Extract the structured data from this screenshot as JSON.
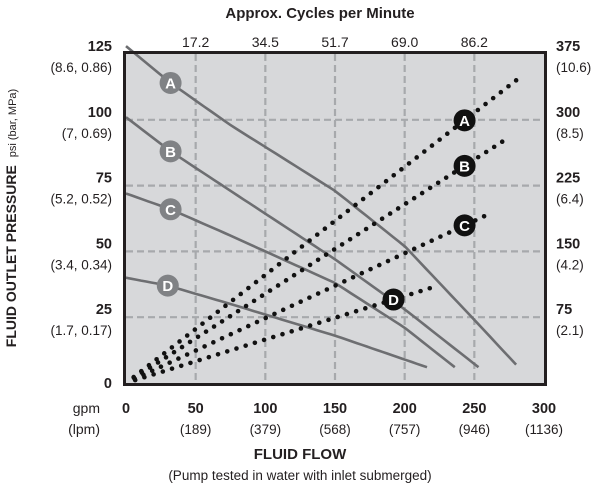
{
  "chart_data": {
    "type": "line",
    "title": "",
    "top_axis": {
      "label": "Approx. Cycles per Minute",
      "ticks": [
        "17.2",
        "34.5",
        "51.7",
        "69.0",
        "86.2"
      ],
      "tick_gpm": [
        50,
        100,
        150,
        200,
        250
      ]
    },
    "xaxis": {
      "label": "FLUID FLOW",
      "sublabel": "(Pump tested in water with inlet submerged)",
      "unit_primary": "gpm",
      "unit_secondary": "(lpm)",
      "range": [
        0,
        300
      ],
      "ticks": [
        {
          "value": 0,
          "label": "0",
          "sub": ""
        },
        {
          "value": 50,
          "label": "50",
          "sub": "(189)"
        },
        {
          "value": 100,
          "label": "100",
          "sub": "(379)"
        },
        {
          "value": 150,
          "label": "150",
          "sub": "(568)"
        },
        {
          "value": 200,
          "label": "200",
          "sub": "(757)"
        },
        {
          "value": 250,
          "label": "250",
          "sub": "(946)"
        },
        {
          "value": 300,
          "label": "300",
          "sub": "(1136)"
        }
      ]
    },
    "yaxis_left": {
      "label": "FLUID OUTLET PRESSURE",
      "label_units": "psi (bar, MPa)",
      "range": [
        0,
        125
      ],
      "ticks": [
        {
          "value": 125,
          "label": "125",
          "sub": "(8.6, 0.86)"
        },
        {
          "value": 100,
          "label": "100",
          "sub": "(7, 0.69)"
        },
        {
          "value": 75,
          "label": "75",
          "sub": "(5.2, 0.52)"
        },
        {
          "value": 50,
          "label": "50",
          "sub": "(3.4, 0.34)"
        },
        {
          "value": 25,
          "label": "25",
          "sub": "(1.7, 0.17)"
        },
        {
          "value": 0,
          "label": "0",
          "sub": ""
        }
      ]
    },
    "yaxis_right": {
      "range": [
        0,
        375
      ],
      "ticks": [
        {
          "value": 375,
          "label": "375",
          "sub": "(10.6)"
        },
        {
          "value": 300,
          "label": "300",
          "sub": "(8.5)"
        },
        {
          "value": 225,
          "label": "225",
          "sub": "(6.4)"
        },
        {
          "value": 150,
          "label": "150",
          "sub": "(4.2)"
        },
        {
          "value": 75,
          "label": "75",
          "sub": "(2.1)"
        }
      ]
    },
    "grid": true,
    "pressure_series": [
      {
        "name": "A",
        "points": [
          [
            0,
            128
          ],
          [
            32,
            114
          ],
          [
            75,
            98
          ],
          [
            150,
            73
          ],
          [
            200,
            52
          ],
          [
            250,
            24
          ],
          [
            280,
            7
          ]
        ],
        "label_at": 32
      },
      {
        "name": "B",
        "points": [
          [
            0,
            101
          ],
          [
            32,
            88
          ],
          [
            75,
            73
          ],
          [
            150,
            47
          ],
          [
            200,
            28
          ],
          [
            253,
            6
          ]
        ],
        "label_at": 32
      },
      {
        "name": "C",
        "points": [
          [
            0,
            72
          ],
          [
            32,
            66
          ],
          [
            75,
            56
          ],
          [
            150,
            38
          ],
          [
            200,
            21
          ],
          [
            236,
            6
          ]
        ],
        "label_at": 32
      },
      {
        "name": "D",
        "points": [
          [
            0,
            40
          ],
          [
            30,
            37
          ],
          [
            75,
            30
          ],
          [
            150,
            18
          ],
          [
            216,
            6
          ]
        ],
        "label_at": 30
      }
    ],
    "air_series": [
      {
        "name": "A",
        "points": [
          [
            0,
            0
          ],
          [
            280,
            345
          ]
        ],
        "label_at": 243
      },
      {
        "name": "B",
        "points": [
          [
            0,
            0
          ],
          [
            270,
            275
          ]
        ],
        "label_at": 243
      },
      {
        "name": "C",
        "points": [
          [
            0,
            0
          ],
          [
            257,
            190
          ]
        ],
        "label_at": 243
      },
      {
        "name": "D",
        "points": [
          [
            0,
            0
          ],
          [
            218,
            108
          ]
        ],
        "label_at": 192
      }
    ],
    "colors": {
      "plot_bg": "#d7d8da",
      "frame": "#231f20",
      "grid": "#a7a9ac",
      "pressure_line": "#6d6e71",
      "pressure_badge": "#808285",
      "air_dots": "#111111",
      "air_badge": "#111111"
    }
  }
}
